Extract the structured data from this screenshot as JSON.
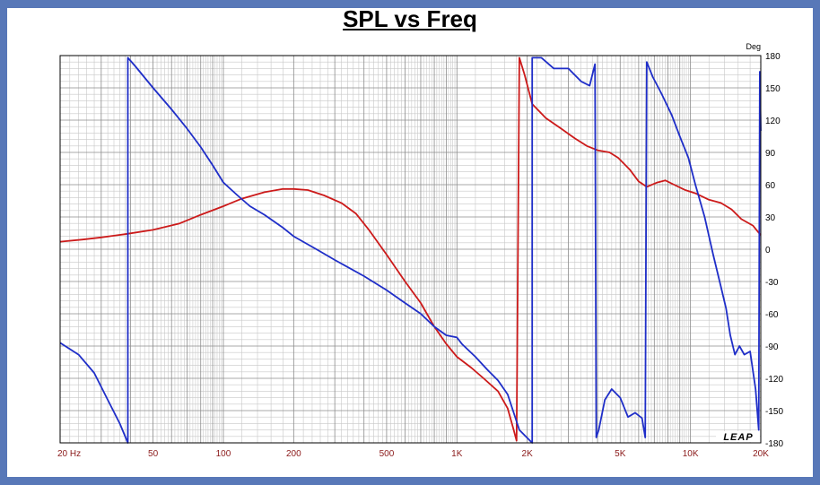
{
  "chart_data": {
    "type": "line",
    "title": "SPL vs Freq",
    "xscale": "log",
    "xlim": [
      20,
      20000
    ],
    "ylim": [
      -180,
      180
    ],
    "y_unit_label": "Deg",
    "x_ticks": [
      {
        "value": 20,
        "label": "20  Hz"
      },
      {
        "value": 50,
        "label": "50"
      },
      {
        "value": 100,
        "label": "100"
      },
      {
        "value": 200,
        "label": "200"
      },
      {
        "value": 500,
        "label": "500"
      },
      {
        "value": 1000,
        "label": "1K"
      },
      {
        "value": 2000,
        "label": "2K"
      },
      {
        "value": 5000,
        "label": "5K"
      },
      {
        "value": 10000,
        "label": "10K"
      },
      {
        "value": 20000,
        "label": "20K"
      }
    ],
    "y_ticks": [
      180,
      150,
      120,
      90,
      60,
      30,
      0,
      -30,
      -60,
      -90,
      -120,
      -150,
      -180
    ],
    "grid": true,
    "series": [
      {
        "color": "#cc1a1a",
        "points": [
          [
            20,
            7
          ],
          [
            25,
            9
          ],
          [
            30,
            11
          ],
          [
            38,
            14
          ],
          [
            50,
            18
          ],
          [
            65,
            24
          ],
          [
            80,
            32
          ],
          [
            100,
            40
          ],
          [
            120,
            47
          ],
          [
            150,
            53
          ],
          [
            180,
            56
          ],
          [
            200,
            56
          ],
          [
            230,
            55
          ],
          [
            270,
            50
          ],
          [
            320,
            43
          ],
          [
            370,
            33
          ],
          [
            420,
            18
          ],
          [
            500,
            -5
          ],
          [
            600,
            -30
          ],
          [
            700,
            -50
          ],
          [
            800,
            -72
          ],
          [
            900,
            -88
          ],
          [
            1000,
            -100
          ],
          [
            1150,
            -110
          ],
          [
            1300,
            -120
          ],
          [
            1500,
            -132
          ],
          [
            1650,
            -148
          ],
          [
            1750,
            -168
          ],
          [
            1800,
            -178
          ],
          [
            1850,
            178
          ],
          [
            1950,
            162
          ],
          [
            2100,
            135
          ],
          [
            2400,
            122
          ],
          [
            2800,
            112
          ],
          [
            3200,
            103
          ],
          [
            3600,
            96
          ],
          [
            4000,
            92
          ],
          [
            4500,
            90
          ],
          [
            4900,
            85
          ],
          [
            5500,
            74
          ],
          [
            6000,
            63
          ],
          [
            6500,
            58
          ],
          [
            7200,
            62
          ],
          [
            7800,
            64
          ],
          [
            8500,
            60
          ],
          [
            9500,
            55
          ],
          [
            10500,
            52
          ],
          [
            12000,
            46
          ],
          [
            13500,
            43
          ],
          [
            15000,
            37
          ],
          [
            16500,
            28
          ],
          [
            18500,
            22
          ],
          [
            20000,
            13
          ]
        ]
      },
      {
        "color": "#1f2ec8",
        "points": [
          [
            20,
            -87
          ],
          [
            24,
            -98
          ],
          [
            28,
            -115
          ],
          [
            32,
            -140
          ],
          [
            36,
            -162
          ],
          [
            39,
            -180
          ],
          [
            39,
            178
          ],
          [
            42,
            170
          ],
          [
            50,
            150
          ],
          [
            60,
            130
          ],
          [
            70,
            112
          ],
          [
            80,
            95
          ],
          [
            90,
            78
          ],
          [
            100,
            62
          ],
          [
            115,
            50
          ],
          [
            130,
            40
          ],
          [
            150,
            32
          ],
          [
            180,
            20
          ],
          [
            200,
            12
          ],
          [
            250,
            0
          ],
          [
            300,
            -10
          ],
          [
            400,
            -25
          ],
          [
            500,
            -38
          ],
          [
            600,
            -50
          ],
          [
            700,
            -60
          ],
          [
            800,
            -72
          ],
          [
            900,
            -80
          ],
          [
            1000,
            -82
          ],
          [
            1050,
            -88
          ],
          [
            1200,
            -100
          ],
          [
            1350,
            -112
          ],
          [
            1500,
            -122
          ],
          [
            1650,
            -135
          ],
          [
            1750,
            -152
          ],
          [
            1850,
            -168
          ],
          [
            2100,
            -180
          ],
          [
            2100,
            178
          ],
          [
            2300,
            178
          ],
          [
            2600,
            168
          ],
          [
            3000,
            168
          ],
          [
            3400,
            156
          ],
          [
            3700,
            152
          ],
          [
            3900,
            172
          ],
          [
            3950,
            -175
          ],
          [
            4050,
            -168
          ],
          [
            4300,
            -140
          ],
          [
            4600,
            -130
          ],
          [
            5000,
            -138
          ],
          [
            5400,
            -156
          ],
          [
            5800,
            -152
          ],
          [
            6200,
            -157
          ],
          [
            6400,
            -175
          ],
          [
            6500,
            174
          ],
          [
            6900,
            160
          ],
          [
            7500,
            145
          ],
          [
            8300,
            125
          ],
          [
            9000,
            105
          ],
          [
            9800,
            85
          ],
          [
            10500,
            60
          ],
          [
            11500,
            30
          ],
          [
            12500,
            -5
          ],
          [
            13500,
            -35
          ],
          [
            14200,
            -55
          ],
          [
            14800,
            -80
          ],
          [
            15500,
            -98
          ],
          [
            16200,
            -90
          ],
          [
            17000,
            -98
          ],
          [
            18000,
            -95
          ],
          [
            19000,
            -130
          ],
          [
            19600,
            -168
          ],
          [
            19800,
            165
          ],
          [
            20000,
            110
          ]
        ]
      }
    ]
  }
}
